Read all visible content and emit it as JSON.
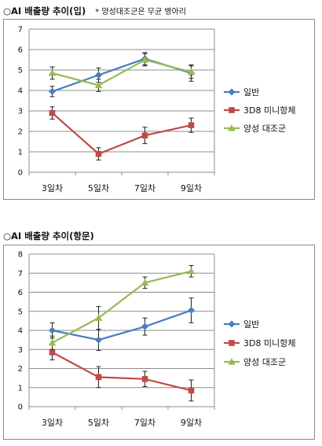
{
  "captions": {
    "top_title": "○AI 배출량 추이(입)",
    "top_note": "* 양성대조군은 무균 병아리",
    "bottom_title": "○AI 배출량 추이(항문)"
  },
  "chart_data": [
    {
      "type": "line",
      "categories": [
        "3일차",
        "5일차",
        "7일차",
        "9일차"
      ],
      "ylim": [
        0,
        7
      ],
      "yticks": [
        "0",
        "1",
        "2",
        "3",
        "4",
        "5",
        "6",
        "7"
      ],
      "error_bars": true,
      "legend_position": "right",
      "series": [
        {
          "name": "일반",
          "values": [
            3.95,
            4.75,
            5.55,
            4.85
          ],
          "errors": [
            0.25,
            0.35,
            0.3,
            0.4
          ],
          "color": "#4a7ebb",
          "marker": "diamond"
        },
        {
          "name": "3D8 미니항체",
          "values": [
            2.9,
            0.9,
            1.8,
            2.3
          ],
          "errors": [
            0.3,
            0.3,
            0.4,
            0.35
          ],
          "color": "#be4b48",
          "marker": "square"
        },
        {
          "name": "양성 대조군",
          "values": [
            4.85,
            4.25,
            5.5,
            4.9
          ],
          "errors": [
            0.3,
            0.3,
            0.3,
            0.3
          ],
          "color": "#98b954",
          "marker": "triangle"
        }
      ]
    },
    {
      "type": "line",
      "categories": [
        "3일차",
        "5일차",
        "7일차",
        "9일차"
      ],
      "ylim": [
        0,
        8
      ],
      "yticks": [
        "0",
        "1",
        "2",
        "3",
        "4",
        "5",
        "6",
        "7",
        "8"
      ],
      "error_bars": true,
      "legend_position": "right",
      "series": [
        {
          "name": "일반",
          "values": [
            4.0,
            3.5,
            4.2,
            5.05
          ],
          "errors": [
            0.4,
            0.55,
            0.45,
            0.65
          ],
          "color": "#4a7ebb",
          "marker": "diamond"
        },
        {
          "name": "3D8 미니항체",
          "values": [
            2.85,
            1.55,
            1.45,
            0.85
          ],
          "errors": [
            0.4,
            0.55,
            0.4,
            0.55
          ],
          "color": "#be4b48",
          "marker": "square"
        },
        {
          "name": "양성 대조군",
          "values": [
            3.35,
            4.65,
            6.5,
            7.1
          ],
          "errors": [
            0.35,
            0.6,
            0.3,
            0.3
          ],
          "color": "#98b954",
          "marker": "triangle"
        }
      ]
    }
  ]
}
